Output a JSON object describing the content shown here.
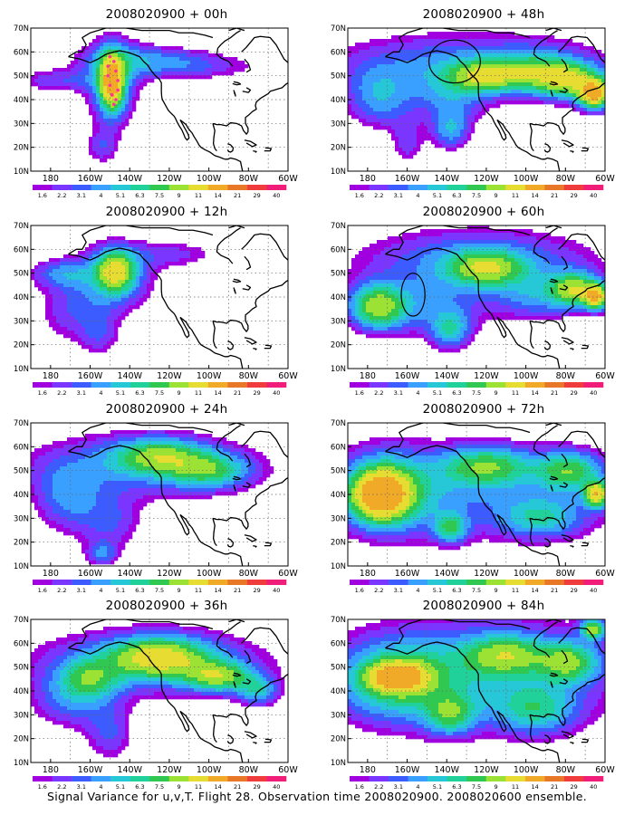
{
  "footer": "Signal Variance for u,v,T. Flight 28. Observation time 2008020900. 2008020600 ensemble.",
  "colors": [
    "#a000e0",
    "#7a35ff",
    "#3c5cff",
    "#3aa0ff",
    "#26c8d8",
    "#20d19a",
    "#30c850",
    "#9ce235",
    "#e6dc32",
    "#f0aa28",
    "#e87828",
    "#f03c3c",
    "#f01e78"
  ],
  "chart_data": [
    {
      "type": "heatmap",
      "title": "2008020900 + 00h",
      "xticks": [
        "180",
        "160W",
        "140W",
        "120W",
        "100W",
        "80W",
        "60W"
      ],
      "yticks": [
        "10N",
        "20N",
        "30N",
        "40N",
        "50N",
        "60N",
        "70N"
      ],
      "colorbar": [
        "1.6",
        "2.2",
        "3.1",
        "4",
        "5.1",
        "6.3",
        "7.5",
        "9",
        "11",
        "14",
        "21",
        "29",
        "40"
      ],
      "xlim": [
        170,
        300
      ],
      "ylim": [
        10,
        70
      ],
      "blobs": [
        {
          "lon": 211,
          "lat": 47,
          "rlon": 6,
          "rlat": 11,
          "a": 13
        },
        {
          "lon": 211,
          "lat": 47,
          "rlon": 14,
          "rlat": 20,
          "a": 4
        },
        {
          "lon": 245,
          "lat": 54,
          "rlon": 40,
          "rlat": 6,
          "a": 3.2
        },
        {
          "lon": 183,
          "lat": 48,
          "rlon": 22,
          "rlat": 5,
          "a": 2.8
        },
        {
          "lon": 225,
          "lat": 58,
          "rlon": 30,
          "rlat": 6,
          "a": 2.5
        },
        {
          "lon": 206,
          "lat": 20,
          "rlon": 8,
          "rlat": 7,
          "a": 2.6
        }
      ],
      "circles": [],
      "dots": [
        [
          210,
          58
        ],
        [
          209,
          54
        ],
        [
          209,
          50
        ],
        [
          210,
          46
        ],
        [
          211,
          42
        ],
        [
          212,
          38
        ],
        [
          213,
          40
        ],
        [
          214,
          44
        ],
        [
          214,
          48
        ],
        [
          213,
          52
        ],
        [
          212,
          56
        ]
      ]
    },
    {
      "type": "heatmap",
      "title": "2008020900 + 48h",
      "xticks": [
        "180",
        "160W",
        "140W",
        "120W",
        "100W",
        "80W",
        "60W"
      ],
      "yticks": [
        "10N",
        "20N",
        "30N",
        "40N",
        "50N",
        "60N",
        "70N"
      ],
      "colorbar": [
        "1.6",
        "2.2",
        "3.1",
        "4",
        "5.1",
        "6.3",
        "7.5",
        "9",
        "11",
        "14",
        "21",
        "29",
        "40"
      ],
      "xlim": [
        170,
        300
      ],
      "ylim": [
        10,
        70
      ],
      "blobs": [
        {
          "lon": 230,
          "lat": 54,
          "rlon": 70,
          "rlat": 14,
          "a": 4.5
        },
        {
          "lon": 240,
          "lat": 50,
          "rlon": 18,
          "rlat": 6,
          "a": 8
        },
        {
          "lon": 282,
          "lat": 48,
          "rlon": 16,
          "rlat": 7,
          "a": 9
        },
        {
          "lon": 295,
          "lat": 42,
          "rlon": 8,
          "rlat": 6,
          "a": 13
        },
        {
          "lon": 265,
          "lat": 52,
          "rlon": 18,
          "rlat": 8,
          "a": 5
        },
        {
          "lon": 186,
          "lat": 40,
          "rlon": 16,
          "rlat": 12,
          "a": 4
        },
        {
          "lon": 222,
          "lat": 40,
          "rlon": 18,
          "rlat": 10,
          "a": 3
        },
        {
          "lon": 222,
          "lat": 27,
          "rlon": 10,
          "rlat": 8,
          "a": 4.5
        },
        {
          "lon": 200,
          "lat": 22,
          "rlon": 8,
          "rlat": 10,
          "a": 2.6
        }
      ],
      "circles": [
        {
          "lon": 224,
          "lat": 56,
          "rlon": 13,
          "rlat": 9
        }
      ],
      "dots": []
    },
    {
      "type": "heatmap",
      "title": "2008020900 + 12h",
      "xticks": [
        "180",
        "160W",
        "140W",
        "120W",
        "100W",
        "80W",
        "60W"
      ],
      "yticks": [
        "10N",
        "20N",
        "30N",
        "40N",
        "50N",
        "60N",
        "70N"
      ],
      "colorbar": [
        "1.6",
        "2.2",
        "3.1",
        "4",
        "5.1",
        "6.3",
        "7.5",
        "9",
        "11",
        "14",
        "21",
        "29",
        "40"
      ],
      "xlim": [
        170,
        300
      ],
      "ylim": [
        10,
        70
      ],
      "blobs": [
        {
          "lon": 213,
          "lat": 51,
          "rlon": 9,
          "rlat": 8,
          "a": 9
        },
        {
          "lon": 212,
          "lat": 48,
          "rlon": 20,
          "rlat": 14,
          "a": 4.5
        },
        {
          "lon": 185,
          "lat": 50,
          "rlon": 16,
          "rlat": 6,
          "a": 3.5
        },
        {
          "lon": 190,
          "lat": 34,
          "rlon": 18,
          "rlat": 14,
          "a": 2.6
        },
        {
          "lon": 242,
          "lat": 58,
          "rlon": 25,
          "rlat": 6,
          "a": 2.4
        },
        {
          "lon": 205,
          "lat": 24,
          "rlon": 10,
          "rlat": 10,
          "a": 2.4
        }
      ],
      "circles": [],
      "dots": []
    },
    {
      "type": "heatmap",
      "title": "2008020900 + 60h",
      "xticks": [
        "180",
        "160W",
        "140W",
        "120W",
        "100W",
        "80W",
        "60W"
      ],
      "yticks": [
        "10N",
        "20N",
        "30N",
        "40N",
        "50N",
        "60N",
        "70N"
      ],
      "colorbar": [
        "1.6",
        "2.2",
        "3.1",
        "4",
        "5.1",
        "6.3",
        "7.5",
        "9",
        "11",
        "14",
        "21",
        "29",
        "40"
      ],
      "xlim": [
        170,
        300
      ],
      "ylim": [
        10,
        70
      ],
      "blobs": [
        {
          "lon": 185,
          "lat": 36,
          "rlon": 14,
          "rlat": 9,
          "a": 9
        },
        {
          "lon": 240,
          "lat": 52,
          "rlon": 18,
          "rlat": 7,
          "a": 7.5
        },
        {
          "lon": 285,
          "lat": 43,
          "rlon": 12,
          "rlat": 7,
          "a": 9
        },
        {
          "lon": 296,
          "lat": 40,
          "rlon": 6,
          "rlat": 5,
          "a": 12
        },
        {
          "lon": 235,
          "lat": 55,
          "rlon": 60,
          "rlat": 14,
          "a": 4.5
        },
        {
          "lon": 222,
          "lat": 26,
          "rlon": 10,
          "rlat": 8,
          "a": 5
        },
        {
          "lon": 210,
          "lat": 35,
          "rlon": 30,
          "rlat": 12,
          "a": 3.2
        },
        {
          "lon": 265,
          "lat": 40,
          "rlon": 20,
          "rlat": 10,
          "a": 3.5
        }
      ],
      "circles": [
        {
          "lon": 203,
          "lat": 41,
          "rlon": 6,
          "rlat": 9
        }
      ],
      "dots": []
    },
    {
      "type": "heatmap",
      "title": "2008020900 + 24h",
      "xticks": [
        "180",
        "160W",
        "140W",
        "120W",
        "100W",
        "80W",
        "60W"
      ],
      "yticks": [
        "10N",
        "20N",
        "30N",
        "40N",
        "50N",
        "60N",
        "70N"
      ],
      "colorbar": [
        "1.6",
        "2.2",
        "3.1",
        "4",
        "5.1",
        "6.3",
        "7.5",
        "9",
        "11",
        "14",
        "21",
        "29",
        "40"
      ],
      "xlim": [
        170,
        300
      ],
      "ylim": [
        10,
        70
      ],
      "blobs": [
        {
          "lon": 235,
          "lat": 56,
          "rlon": 22,
          "rlat": 7,
          "a": 7
        },
        {
          "lon": 260,
          "lat": 50,
          "rlon": 20,
          "rlat": 7,
          "a": 6
        },
        {
          "lon": 225,
          "lat": 52,
          "rlon": 60,
          "rlat": 14,
          "a": 4
        },
        {
          "lon": 188,
          "lat": 38,
          "rlon": 16,
          "rlat": 14,
          "a": 3.5
        },
        {
          "lon": 210,
          "lat": 28,
          "rlon": 16,
          "rlat": 12,
          "a": 3
        },
        {
          "lon": 206,
          "lat": 15,
          "rlon": 8,
          "rlat": 5,
          "a": 3.5
        }
      ],
      "circles": [],
      "dots": []
    },
    {
      "type": "heatmap",
      "title": "2008020900 + 72h",
      "xticks": [
        "180",
        "160W",
        "140W",
        "120W",
        "100W",
        "80W",
        "60W"
      ],
      "yticks": [
        "10N",
        "20N",
        "30N",
        "40N",
        "50N",
        "60N",
        "70N"
      ],
      "colorbar": [
        "1.6",
        "2.2",
        "3.1",
        "4",
        "5.1",
        "6.3",
        "7.5",
        "9",
        "11",
        "14",
        "21",
        "29",
        "40"
      ],
      "xlim": [
        170,
        300
      ],
      "ylim": [
        10,
        70
      ],
      "blobs": [
        {
          "lon": 187,
          "lat": 40,
          "rlon": 14,
          "rlat": 10,
          "a": 14
        },
        {
          "lon": 190,
          "lat": 42,
          "rlon": 26,
          "rlat": 18,
          "a": 5
        },
        {
          "lon": 240,
          "lat": 52,
          "rlon": 22,
          "rlat": 8,
          "a": 7
        },
        {
          "lon": 282,
          "lat": 50,
          "rlon": 16,
          "rlat": 8,
          "a": 7
        },
        {
          "lon": 296,
          "lat": 40,
          "rlon": 6,
          "rlat": 5,
          "a": 12
        },
        {
          "lon": 222,
          "lat": 26,
          "rlon": 8,
          "rlat": 6,
          "a": 6
        },
        {
          "lon": 240,
          "lat": 40,
          "rlon": 70,
          "rlat": 20,
          "a": 3.5
        },
        {
          "lon": 268,
          "lat": 30,
          "rlon": 20,
          "rlat": 8,
          "a": 4.5
        }
      ],
      "circles": [],
      "dots": []
    },
    {
      "type": "heatmap",
      "title": "2008020900 + 36h",
      "xticks": [
        "180",
        "160W",
        "140W",
        "120W",
        "100W",
        "80W",
        "60W"
      ],
      "yticks": [
        "10N",
        "20N",
        "30N",
        "40N",
        "50N",
        "60N",
        "70N"
      ],
      "colorbar": [
        "1.6",
        "2.2",
        "3.1",
        "4",
        "5.1",
        "6.3",
        "7.5",
        "9",
        "11",
        "14",
        "21",
        "29",
        "40"
      ],
      "xlim": [
        170,
        300
      ],
      "ylim": [
        10,
        70
      ],
      "blobs": [
        {
          "lon": 235,
          "lat": 54,
          "rlon": 24,
          "rlat": 8,
          "a": 9
        },
        {
          "lon": 265,
          "lat": 46,
          "rlon": 16,
          "rlat": 6,
          "a": 8
        },
        {
          "lon": 230,
          "lat": 52,
          "rlon": 60,
          "rlat": 14,
          "a": 4.5
        },
        {
          "lon": 200,
          "lat": 45,
          "rlon": 14,
          "rlat": 8,
          "a": 5
        },
        {
          "lon": 190,
          "lat": 36,
          "rlon": 20,
          "rlat": 12,
          "a": 3.5
        },
        {
          "lon": 210,
          "lat": 22,
          "rlon": 12,
          "rlat": 12,
          "a": 3
        },
        {
          "lon": 285,
          "lat": 40,
          "rlon": 10,
          "rlat": 6,
          "a": 5
        }
      ],
      "circles": [],
      "dots": []
    },
    {
      "type": "heatmap",
      "title": "2008020900 + 84h",
      "xticks": [
        "180",
        "160W",
        "140W",
        "120W",
        "100W",
        "80W",
        "60W"
      ],
      "yticks": [
        "10N",
        "20N",
        "30N",
        "40N",
        "50N",
        "60N",
        "70N"
      ],
      "colorbar": [
        "1.6",
        "2.2",
        "3.1",
        "4",
        "5.1",
        "6.3",
        "7.5",
        "9",
        "11",
        "14",
        "21",
        "29",
        "40"
      ],
      "xlim": [
        170,
        300
      ],
      "ylim": [
        10,
        70
      ],
      "blobs": [
        {
          "lon": 195,
          "lat": 46,
          "rlon": 14,
          "rlat": 6,
          "a": 12
        },
        {
          "lon": 195,
          "lat": 44,
          "rlon": 30,
          "rlat": 16,
          "a": 6
        },
        {
          "lon": 240,
          "lat": 48,
          "rlon": 70,
          "rlat": 24,
          "a": 4.5
        },
        {
          "lon": 250,
          "lat": 55,
          "rlon": 20,
          "rlat": 8,
          "a": 7
        },
        {
          "lon": 282,
          "lat": 52,
          "rlon": 14,
          "rlat": 8,
          "a": 7
        },
        {
          "lon": 294,
          "lat": 66,
          "rlon": 6,
          "rlat": 4,
          "a": 9
        },
        {
          "lon": 222,
          "lat": 30,
          "rlon": 12,
          "rlat": 8,
          "a": 6
        },
        {
          "lon": 265,
          "lat": 32,
          "rlon": 20,
          "rlat": 10,
          "a": 5
        }
      ],
      "circles": [],
      "dots": []
    }
  ]
}
